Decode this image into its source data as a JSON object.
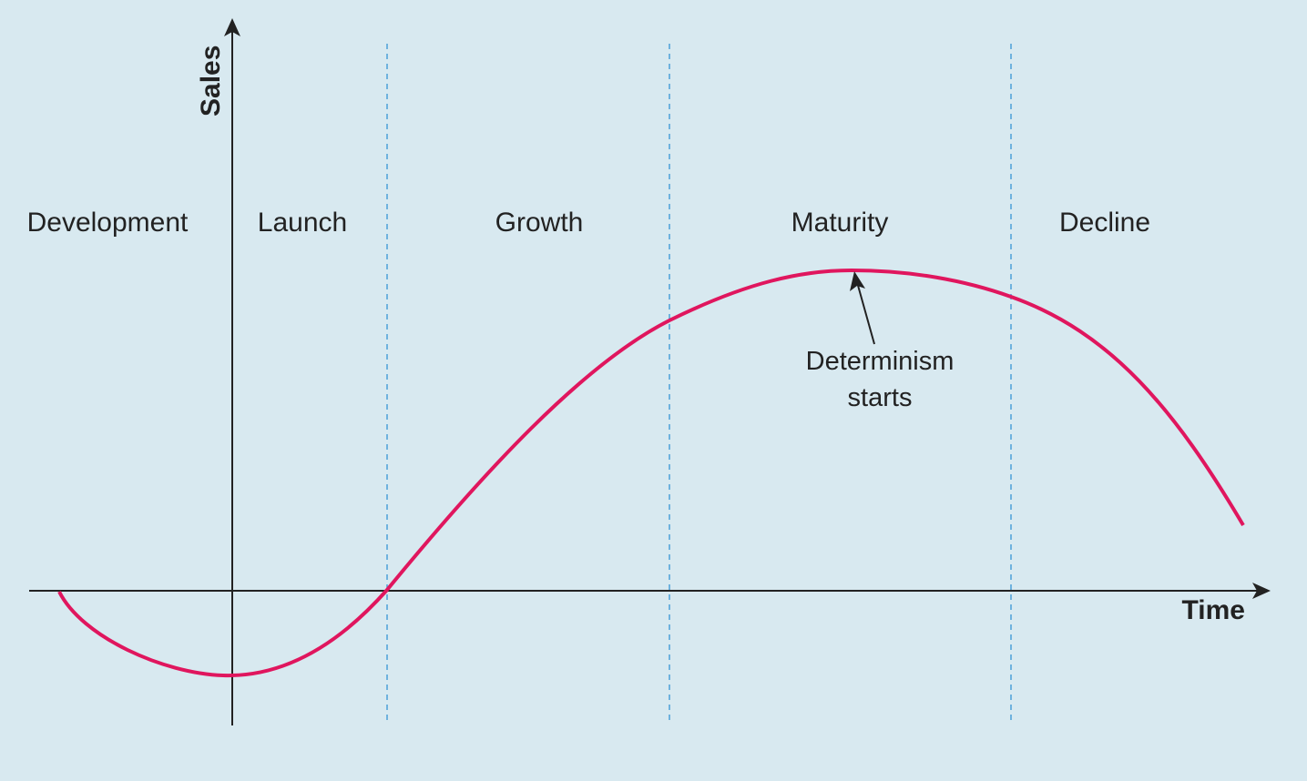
{
  "axes": {
    "y_label": "Sales",
    "x_label": "Time"
  },
  "stages": [
    "Development",
    "Launch",
    "Growth",
    "Maturity",
    "Decline"
  ],
  "annotation": [
    "Determinism",
    "starts"
  ]
}
